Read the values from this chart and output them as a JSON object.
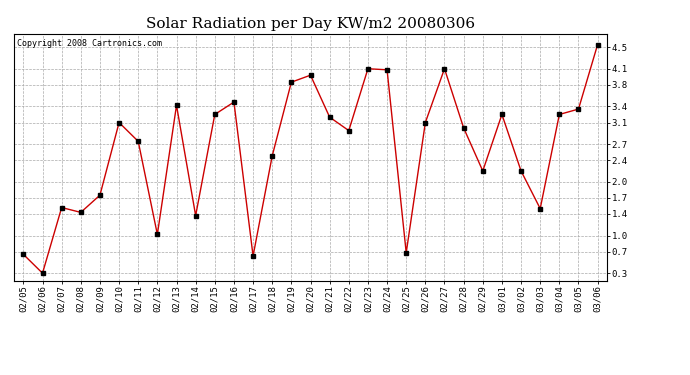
{
  "title": "Solar Radiation per Day KW/m2 20080306",
  "copyright_text": "Copyright 2008 Cartronics.com",
  "dates": [
    "02/05",
    "02/06",
    "02/07",
    "02/08",
    "02/09",
    "02/10",
    "02/11",
    "02/12",
    "02/13",
    "02/14",
    "02/15",
    "02/16",
    "02/17",
    "02/18",
    "02/19",
    "02/20",
    "02/21",
    "02/22",
    "02/23",
    "02/24",
    "02/25",
    "02/26",
    "02/27",
    "02/28",
    "02/29",
    "03/01",
    "03/02",
    "03/03",
    "03/04",
    "03/05",
    "03/06"
  ],
  "values": [
    0.65,
    0.3,
    1.52,
    1.43,
    1.75,
    3.1,
    2.75,
    1.02,
    3.42,
    1.37,
    3.25,
    3.48,
    0.62,
    2.48,
    3.85,
    3.98,
    3.2,
    2.95,
    4.1,
    4.08,
    0.68,
    3.1,
    4.1,
    3.0,
    2.2,
    3.25,
    2.2,
    1.5,
    3.25,
    3.35,
    4.55
  ],
  "line_color": "#cc0000",
  "marker": "s",
  "marker_size": 2.5,
  "marker_color": "#000000",
  "bg_color": "#ffffff",
  "grid_color": "#aaaaaa",
  "yticks": [
    0.3,
    0.7,
    1.0,
    1.4,
    1.7,
    2.0,
    2.4,
    2.7,
    3.1,
    3.4,
    3.8,
    4.1,
    4.5
  ],
  "ylim": [
    0.15,
    4.75
  ],
  "title_fontsize": 11,
  "tick_fontsize": 6.5,
  "copyright_fontsize": 6.0,
  "figwidth": 6.9,
  "figheight": 3.75,
  "dpi": 100
}
